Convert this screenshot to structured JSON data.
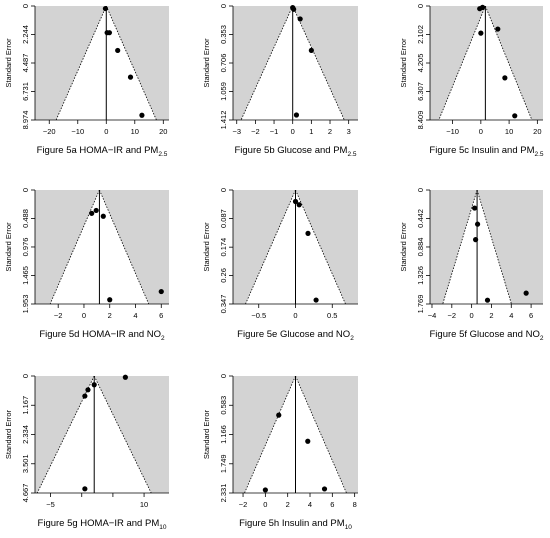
{
  "chart_data": [
    {
      "type": "scatter",
      "title": "Figure 5a HOMA−IR and PM",
      "title_sub": "2.5",
      "ylabel": "Standard Error",
      "xlim": [
        -25,
        22
      ],
      "ylim": [
        0,
        8.974
      ],
      "y_reversed": true,
      "xticks": [
        -20,
        -10,
        0,
        10,
        20
      ],
      "xtick_labels": [
        "−20",
        "−10",
        "0",
        "10",
        "20"
      ],
      "yticks": [
        0,
        2.244,
        4.487,
        6.731,
        8.974
      ],
      "ytick_labels": [
        "0",
        "2.244",
        "4.487",
        "6.731",
        "8.974"
      ],
      "summary_effect": 0,
      "pseudo_ci_z": 1.96,
      "points": [
        {
          "x": -0.3,
          "y": 0.2
        },
        {
          "x": 0.3,
          "y": 2.1
        },
        {
          "x": 1.1,
          "y": 2.1
        },
        {
          "x": 4.0,
          "y": 3.5
        },
        {
          "x": 8.5,
          "y": 5.6
        },
        {
          "x": 12.5,
          "y": 8.6
        }
      ]
    },
    {
      "type": "scatter",
      "title": "Figure 5b Glucose and PM",
      "title_sub": "2.5",
      "ylabel": "Standard Error",
      "xlim": [
        -3.2,
        3.5
      ],
      "ylim": [
        0,
        1.412
      ],
      "y_reversed": true,
      "xticks": [
        -3,
        -2,
        -1,
        0,
        1,
        2,
        3
      ],
      "xtick_labels": [
        "−3",
        "−2",
        "−1",
        "0",
        "1",
        "2",
        "3"
      ],
      "yticks": [
        0,
        0.353,
        0.706,
        1.059,
        1.412
      ],
      "ytick_labels": [
        "0",
        "0.353",
        "0.706",
        "1.059",
        "1.412"
      ],
      "summary_effect": 0,
      "pseudo_ci_z": 1.96,
      "points": [
        {
          "x": 0.0,
          "y": 0.02
        },
        {
          "x": 0.05,
          "y": 0.04
        },
        {
          "x": 0.4,
          "y": 0.16
        },
        {
          "x": 1.0,
          "y": 0.55
        },
        {
          "x": 0.2,
          "y": 1.35
        }
      ]
    },
    {
      "type": "scatter",
      "title": "Figure 5c Insulin and PM",
      "title_sub": "2.5",
      "ylabel": "Standard Error",
      "xlim": [
        -18,
        22
      ],
      "ylim": [
        0,
        8.409
      ],
      "y_reversed": true,
      "xticks": [
        -10,
        0,
        10,
        20
      ],
      "xtick_labels": [
        "−10",
        "0",
        "10",
        "20"
      ],
      "yticks": [
        0,
        2.102,
        4.205,
        6.307,
        8.409
      ],
      "ytick_labels": [
        "0",
        "2.102",
        "4.205",
        "6.307",
        "8.409"
      ],
      "summary_effect": 1.6,
      "pseudo_ci_z": 1.96,
      "points": [
        {
          "x": -0.4,
          "y": 0.2
        },
        {
          "x": 0.6,
          "y": 0.1
        },
        {
          "x": 0.0,
          "y": 2.0
        },
        {
          "x": 6.0,
          "y": 1.7
        },
        {
          "x": 8.5,
          "y": 5.3
        },
        {
          "x": 12.0,
          "y": 8.1
        }
      ]
    },
    {
      "type": "scatter",
      "title": "Figure 5d HOMA−IR and NO",
      "title_sub": "2",
      "ylabel": "Standard Error",
      "xlim": [
        -3.8,
        6.6
      ],
      "ylim": [
        0,
        1.953
      ],
      "y_reversed": true,
      "xticks": [
        -2,
        0,
        2,
        4,
        6
      ],
      "xtick_labels": [
        "−2",
        "0",
        "2",
        "4",
        "6"
      ],
      "yticks": [
        0,
        0.488,
        0.976,
        1.465,
        1.953
      ],
      "ytick_labels": [
        "0",
        "0.488",
        "0.976",
        "1.465",
        "1.953"
      ],
      "summary_effect": 1.2,
      "pseudo_ci_z": 1.96,
      "points": [
        {
          "x": 0.6,
          "y": 0.4
        },
        {
          "x": 0.95,
          "y": 0.35
        },
        {
          "x": 1.5,
          "y": 0.45
        },
        {
          "x": 2.0,
          "y": 1.88
        },
        {
          "x": 6.0,
          "y": 1.74
        }
      ]
    },
    {
      "type": "scatter",
      "title": "Figure 5e Glucose and NO",
      "title_sub": "2",
      "ylabel": "Standard Error",
      "xlim": [
        -0.85,
        0.85
      ],
      "ylim": [
        0,
        0.347
      ],
      "y_reversed": true,
      "xticks": [
        -0.5,
        0,
        0.5
      ],
      "xtick_labels": [
        "−0.5",
        "0",
        "0.5"
      ],
      "yticks": [
        0,
        0.087,
        0.174,
        0.26,
        0.347
      ],
      "ytick_labels": [
        "0",
        "0.087",
        "0.174",
        "0.26",
        "0.347"
      ],
      "summary_effect": 0.0,
      "pseudo_ci_z": 1.96,
      "points": [
        {
          "x": 0.0,
          "y": 0.035
        },
        {
          "x": 0.05,
          "y": 0.045
        },
        {
          "x": 0.17,
          "y": 0.132
        },
        {
          "x": 0.28,
          "y": 0.335
        }
      ]
    },
    {
      "type": "scatter",
      "title": "Figure 5f Glucose and NO",
      "title_sub": "2",
      "ylabel": "Standard Error",
      "xlim": [
        -4.2,
        7.2
      ],
      "ylim": [
        0,
        1.769
      ],
      "y_reversed": true,
      "xticks": [
        -4,
        -2,
        0,
        2,
        4,
        6
      ],
      "xtick_labels": [
        "−4",
        "−2",
        "0",
        "2",
        "4",
        "6"
      ],
      "yticks": [
        0,
        0.442,
        0.884,
        1.326,
        1.769
      ],
      "ytick_labels": [
        "0",
        "0.442",
        "0.884",
        "1.326",
        "1.769"
      ],
      "summary_effect": 0.55,
      "pseudo_ci_z": 1.96,
      "points": [
        {
          "x": 0.3,
          "y": 0.28
        },
        {
          "x": 0.6,
          "y": 0.53
        },
        {
          "x": 0.4,
          "y": 0.77
        },
        {
          "x": 1.6,
          "y": 1.71
        },
        {
          "x": 5.5,
          "y": 1.6
        }
      ]
    },
    {
      "type": "scatter",
      "title": "Figure 5g HOMA−IR and PM",
      "title_sub": "10",
      "ylabel": "Standard Error",
      "xlim": [
        -7.5,
        14
      ],
      "ylim": [
        0,
        4.667
      ],
      "y_reversed": true,
      "xticks": [
        -5,
        0,
        5,
        10
      ],
      "xtick_labels": [
        "−5",
        "",
        "",
        "10"
      ],
      "yticks": [
        0,
        1.167,
        2.334,
        3.501,
        4.667
      ],
      "ytick_labels": [
        "0",
        "1.167",
        "2.334",
        "3.501",
        "4.667"
      ],
      "summary_effect": 2.0,
      "pseudo_ci_z": 1.96,
      "points": [
        {
          "x": 7.0,
          "y": 0.05
        },
        {
          "x": 2.0,
          "y": 0.35
        },
        {
          "x": 1.0,
          "y": 0.55
        },
        {
          "x": 0.5,
          "y": 0.8
        },
        {
          "x": 0.5,
          "y": 4.5
        }
      ]
    },
    {
      "type": "scatter",
      "title": "Figure 5h Insulin and PM",
      "title_sub": "10",
      "ylabel": "Standard Error",
      "xlim": [
        -2.9,
        8.3
      ],
      "ylim": [
        0,
        2.331
      ],
      "y_reversed": true,
      "xticks": [
        -2,
        0,
        2,
        4,
        6,
        8
      ],
      "xtick_labels": [
        "−2",
        "0",
        "2",
        "4",
        "6",
        "8"
      ],
      "yticks": [
        0,
        0.583,
        1.166,
        1.749,
        2.331
      ],
      "ytick_labels": [
        "0",
        "0.583",
        "1.166",
        "1.749",
        "2.331"
      ],
      "summary_effect": 2.7,
      "pseudo_ci_z": 1.96,
      "points": [
        {
          "x": 1.2,
          "y": 0.78
        },
        {
          "x": 3.8,
          "y": 1.3
        },
        {
          "x": 0.0,
          "y": 2.27
        },
        {
          "x": 5.3,
          "y": 2.25
        }
      ]
    }
  ],
  "colors": {
    "background_shading": "#d3d3d3",
    "funnel_fill": "#ffffff",
    "points": "#000000",
    "lines": "#000000"
  }
}
